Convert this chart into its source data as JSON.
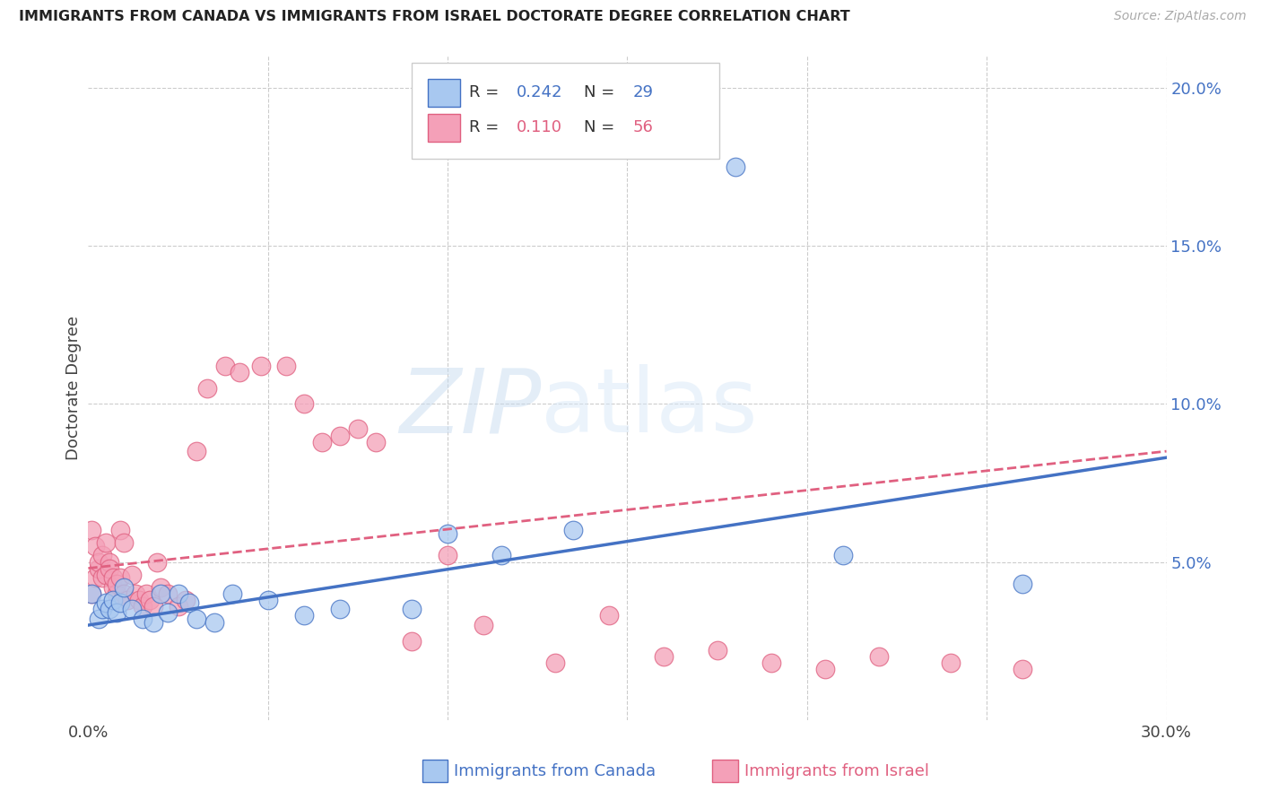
{
  "title": "IMMIGRANTS FROM CANADA VS IMMIGRANTS FROM ISRAEL DOCTORATE DEGREE CORRELATION CHART",
  "source": "Source: ZipAtlas.com",
  "ylabel": "Doctorate Degree",
  "x_min": 0.0,
  "x_max": 0.3,
  "y_min": 0.0,
  "y_max": 0.21,
  "x_ticks": [
    0.0,
    0.05,
    0.1,
    0.15,
    0.2,
    0.25,
    0.3
  ],
  "x_tick_labels": [
    "0.0%",
    "",
    "",
    "",
    "",
    "",
    "30.0%"
  ],
  "y_ticks": [
    0.0,
    0.05,
    0.1,
    0.15,
    0.2
  ],
  "y_tick_labels_right": [
    "",
    "5.0%",
    "10.0%",
    "15.0%",
    "20.0%"
  ],
  "canada_color": "#A8C8F0",
  "israel_color": "#F4A0B8",
  "trendline_canada_color": "#4472C4",
  "trendline_israel_color": "#E06080",
  "watermark_text": "ZIPatlas",
  "legend_R_canada": "0.242",
  "legend_N_canada": "29",
  "legend_R_israel": "0.110",
  "legend_N_israel": "56",
  "canada_x": [
    0.001,
    0.003,
    0.004,
    0.005,
    0.006,
    0.007,
    0.008,
    0.009,
    0.01,
    0.012,
    0.015,
    0.018,
    0.02,
    0.022,
    0.025,
    0.028,
    0.03,
    0.035,
    0.04,
    0.05,
    0.06,
    0.07,
    0.09,
    0.1,
    0.115,
    0.135,
    0.18,
    0.21,
    0.26
  ],
  "canada_y": [
    0.04,
    0.032,
    0.035,
    0.037,
    0.035,
    0.038,
    0.034,
    0.037,
    0.042,
    0.035,
    0.032,
    0.031,
    0.04,
    0.034,
    0.04,
    0.037,
    0.032,
    0.031,
    0.04,
    0.038,
    0.033,
    0.035,
    0.035,
    0.059,
    0.052,
    0.06,
    0.175,
    0.052,
    0.043
  ],
  "israel_x": [
    0.001,
    0.001,
    0.002,
    0.002,
    0.003,
    0.003,
    0.004,
    0.004,
    0.005,
    0.005,
    0.006,
    0.006,
    0.007,
    0.007,
    0.008,
    0.008,
    0.009,
    0.009,
    0.01,
    0.01,
    0.011,
    0.012,
    0.013,
    0.014,
    0.015,
    0.016,
    0.017,
    0.018,
    0.019,
    0.02,
    0.022,
    0.025,
    0.027,
    0.03,
    0.033,
    0.038,
    0.042,
    0.048,
    0.055,
    0.06,
    0.065,
    0.07,
    0.075,
    0.08,
    0.09,
    0.1,
    0.11,
    0.13,
    0.145,
    0.16,
    0.175,
    0.19,
    0.205,
    0.22,
    0.24,
    0.26
  ],
  "israel_y": [
    0.06,
    0.04,
    0.055,
    0.045,
    0.048,
    0.05,
    0.052,
    0.045,
    0.046,
    0.056,
    0.05,
    0.048,
    0.042,
    0.045,
    0.04,
    0.043,
    0.045,
    0.06,
    0.04,
    0.056,
    0.038,
    0.046,
    0.04,
    0.038,
    0.036,
    0.04,
    0.038,
    0.036,
    0.05,
    0.042,
    0.04,
    0.036,
    0.038,
    0.085,
    0.105,
    0.112,
    0.11,
    0.112,
    0.112,
    0.1,
    0.088,
    0.09,
    0.092,
    0.088,
    0.025,
    0.052,
    0.03,
    0.018,
    0.033,
    0.02,
    0.022,
    0.018,
    0.016,
    0.02,
    0.018,
    0.016
  ],
  "trendline_canada_x0": 0.0,
  "trendline_canada_y0": 0.03,
  "trendline_canada_x1": 0.3,
  "trendline_canada_y1": 0.083,
  "trendline_israel_x0": 0.0,
  "trendline_israel_y0": 0.048,
  "trendline_israel_x1": 0.3,
  "trendline_israel_y1": 0.085,
  "background_color": "#FFFFFF",
  "grid_color": "#CCCCCC"
}
